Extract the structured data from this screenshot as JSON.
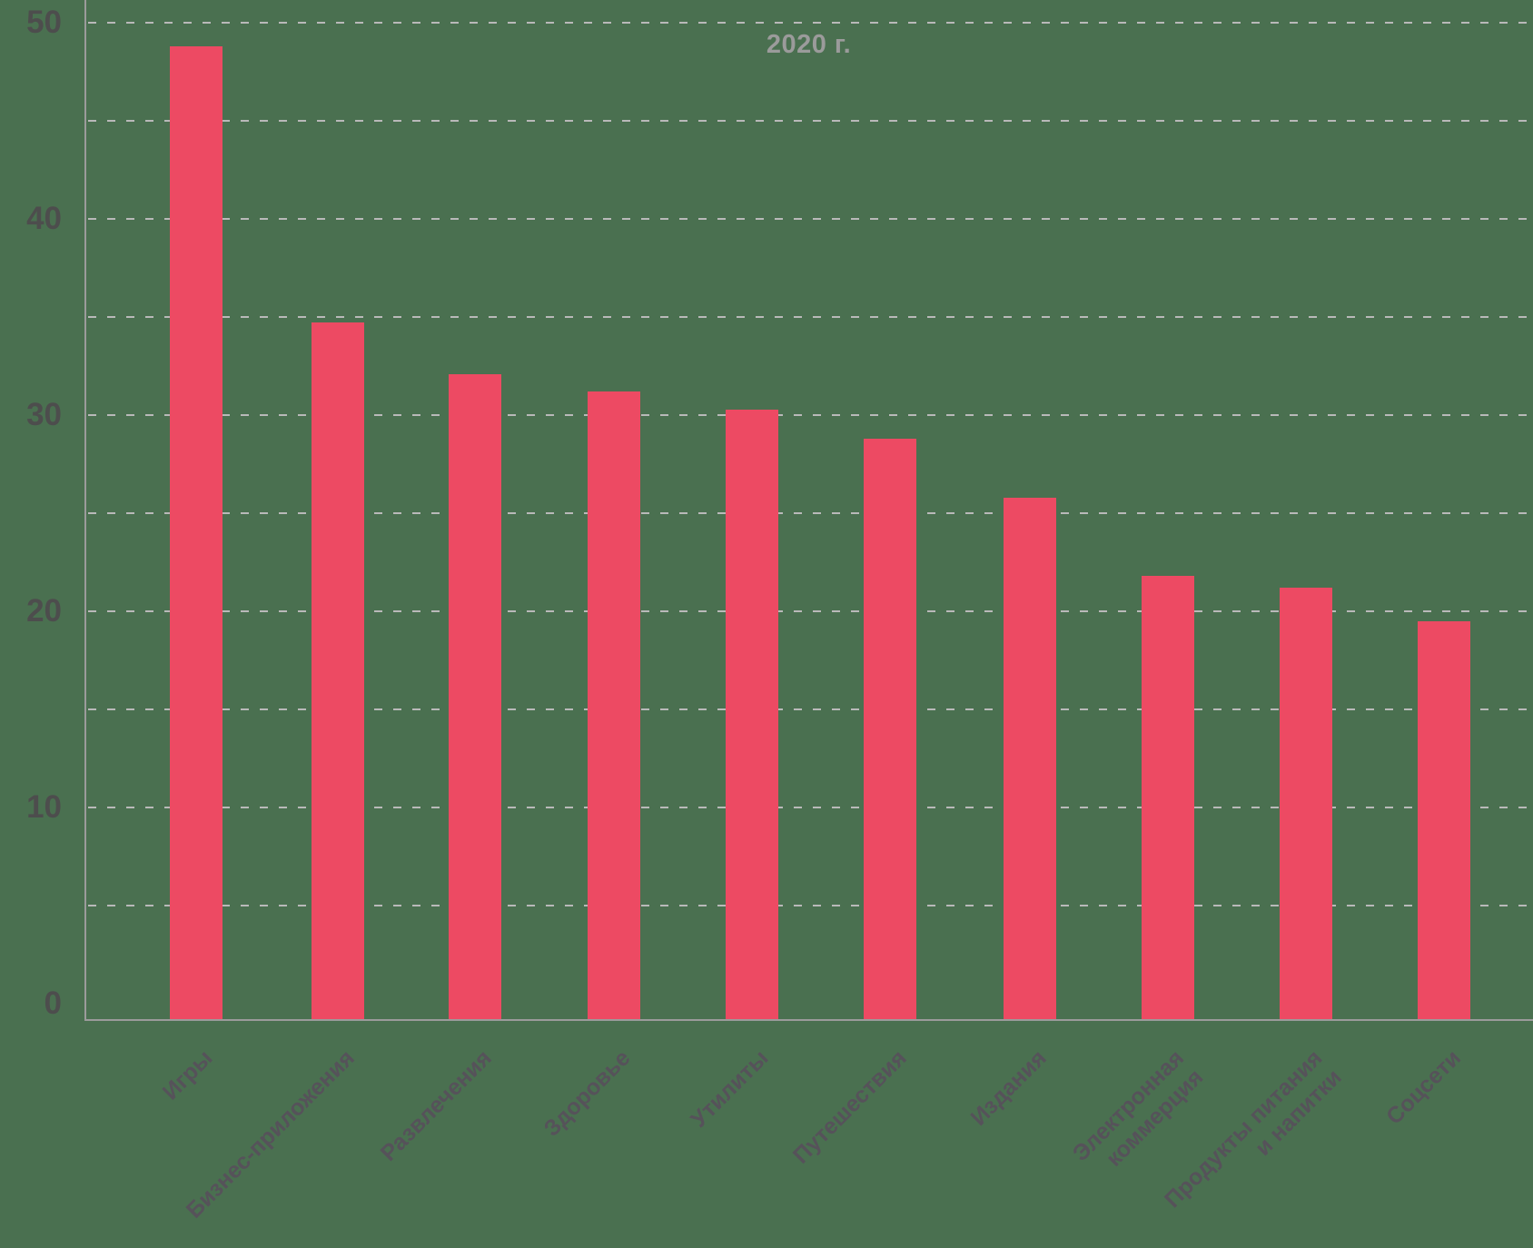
{
  "chart_data": {
    "type": "bar",
    "title": "2020 г.",
    "categories": [
      "Игры",
      "Бизнес-приложения",
      "Развлечения",
      "Здоровье",
      "Утилиты",
      "Путешествия",
      "Издания",
      "Электронная\nкоммерция",
      "Продукты питания\nи напитки",
      "Соцсети"
    ],
    "values": [
      48.8,
      34.7,
      32.1,
      31.2,
      30.3,
      28.8,
      25.8,
      21.8,
      21.2,
      19.5
    ],
    "xlabel": "",
    "ylabel": "",
    "ylim": [
      0,
      50
    ],
    "y_ticks": [
      0,
      10,
      20,
      30,
      40,
      50
    ],
    "gridline_values": [
      5,
      10,
      15,
      20,
      25,
      30,
      35,
      40,
      45,
      50
    ],
    "grid": "horizontal-dashed",
    "legend": "none",
    "colors": {
      "background": "#4a7050",
      "bar": "#ed4a63",
      "axis": "#9b9b9b",
      "grid": "#b9b9b9",
      "title": "#9b9b9b",
      "y_tick_label": "#4d4d4d",
      "x_tick_label": "#56525a"
    }
  }
}
